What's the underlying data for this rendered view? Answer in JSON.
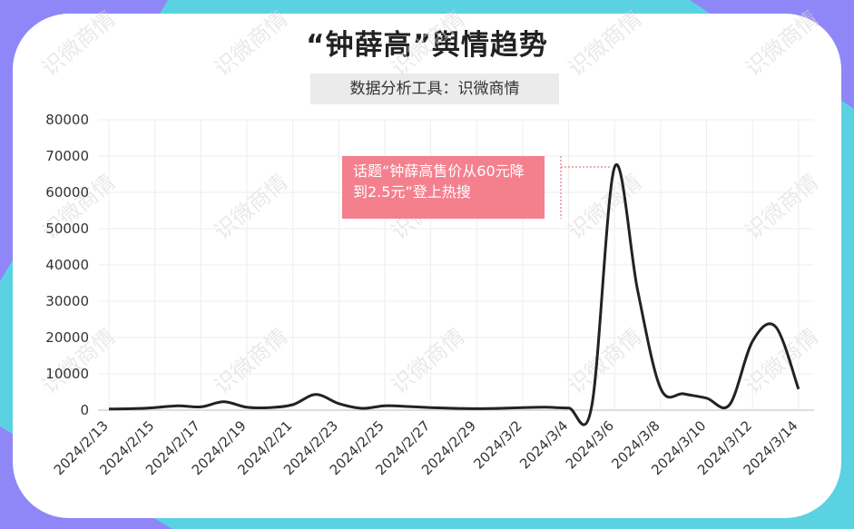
{
  "title": "“钟薛高”舆情趋势",
  "subtitle": "数据分析工具：识微商情",
  "watermark": "识微商情",
  "annotation": "话题“钟薛高售价从60元降到2.5元”登上热搜",
  "colors": {
    "line": "#222222",
    "annotation_bg": "#f4808e",
    "frame_purple": "#8f86f7",
    "frame_cyan": "#5ad2e2"
  },
  "chart_data": {
    "type": "line",
    "title": "“钟薛高”舆情趋势",
    "xlabel": "",
    "ylabel": "",
    "ylim": [
      0,
      80000
    ],
    "yticks": [
      0,
      10000,
      20000,
      30000,
      40000,
      50000,
      60000,
      70000,
      80000
    ],
    "xticks": [
      "2024/2/13",
      "2024/2/15",
      "2024/2/17",
      "2024/2/19",
      "2024/2/21",
      "2024/2/23",
      "2024/2/25",
      "2024/2/27",
      "2024/2/29",
      "2024/3/2",
      "2024/3/4",
      "2024/3/6",
      "2024/3/8",
      "2024/3/10",
      "2024/3/12",
      "2024/3/14"
    ],
    "grid": true,
    "series": [
      {
        "values": [
          {
            "x": "2024/2/13",
            "y": 300
          },
          {
            "x": "2024/2/14",
            "y": 400
          },
          {
            "x": "2024/2/15",
            "y": 700
          },
          {
            "x": "2024/2/16",
            "y": 1200
          },
          {
            "x": "2024/2/17",
            "y": 900
          },
          {
            "x": "2024/2/18",
            "y": 2300
          },
          {
            "x": "2024/2/19",
            "y": 800
          },
          {
            "x": "2024/2/20",
            "y": 700
          },
          {
            "x": "2024/2/21",
            "y": 1500
          },
          {
            "x": "2024/2/22",
            "y": 4300
          },
          {
            "x": "2024/2/23",
            "y": 1800
          },
          {
            "x": "2024/2/24",
            "y": 500
          },
          {
            "x": "2024/2/25",
            "y": 1200
          },
          {
            "x": "2024/2/26",
            "y": 1000
          },
          {
            "x": "2024/2/27",
            "y": 700
          },
          {
            "x": "2024/2/28",
            "y": 500
          },
          {
            "x": "2024/2/29",
            "y": 400
          },
          {
            "x": "2024/3/1",
            "y": 500
          },
          {
            "x": "2024/3/2",
            "y": 700
          },
          {
            "x": "2024/3/3",
            "y": 800
          },
          {
            "x": "2024/3/4",
            "y": 600
          },
          {
            "x": "2024/3/5",
            "y": 1000
          },
          {
            "x": "2024/3/6",
            "y": 67000
          },
          {
            "x": "2024/3/7",
            "y": 33000
          },
          {
            "x": "2024/3/8",
            "y": 6000
          },
          {
            "x": "2024/3/9",
            "y": 4500
          },
          {
            "x": "2024/3/10",
            "y": 3300
          },
          {
            "x": "2024/3/11",
            "y": 1500
          },
          {
            "x": "2024/3/12",
            "y": 19000
          },
          {
            "x": "2024/3/13",
            "y": 23000
          },
          {
            "x": "2024/3/14",
            "y": 5800
          }
        ]
      }
    ]
  }
}
